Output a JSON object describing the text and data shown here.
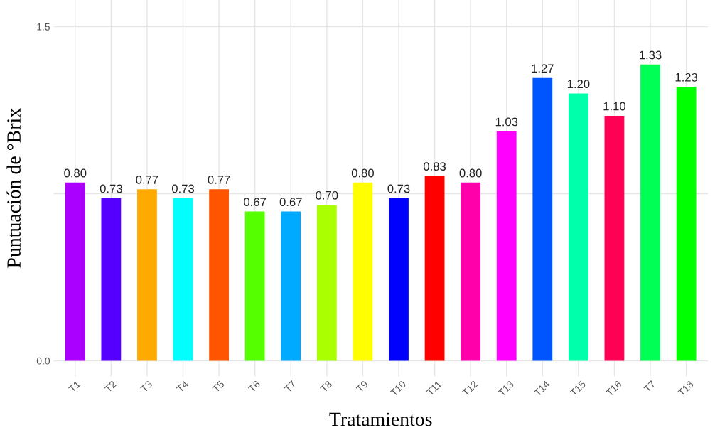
{
  "chart_data": {
    "type": "bar",
    "xlabel": "Tratamientos",
    "ylabel": "Puntuación de °Brix",
    "categories": [
      "T1",
      "T2",
      "T3",
      "T4",
      "T5",
      "T6",
      "T7",
      "T8",
      "T9",
      "T10",
      "T11",
      "T12",
      "T13",
      "T14",
      "T15",
      "T16",
      "T7",
      "T18"
    ],
    "values": [
      0.8,
      0.73,
      0.77,
      0.73,
      0.77,
      0.67,
      0.67,
      0.7,
      0.8,
      0.73,
      0.83,
      0.8,
      1.03,
      1.27,
      1.2,
      1.1,
      1.33,
      1.23
    ],
    "colors": [
      "#aa00ff",
      "#5500ff",
      "#ffaa00",
      "#00ffff",
      "#ff5500",
      "#55ff00",
      "#00aaff",
      "#aaff00",
      "#ffff00",
      "#0000ff",
      "#ff0000",
      "#ff00aa",
      "#ff00ff",
      "#0055ff",
      "#00ffaa",
      "#ff0055",
      "#00ff55",
      "#00ff00"
    ],
    "value_labels": [
      "0.80",
      "0.73",
      "0.77",
      "0.73",
      "0.77",
      "0.67",
      "0.67",
      "0.70",
      "0.80",
      "0.73",
      "0.83",
      "0.80",
      "1.03",
      "1.27",
      "1.20",
      "1.10",
      "1.33",
      "1.23"
    ],
    "ylim": [
      -0.07,
      1.62
    ],
    "yticks": [
      {
        "value": 0.0,
        "label": "0.0"
      },
      {
        "value": 0.75,
        "label": null
      },
      {
        "value": 1.5,
        "label": "1.5"
      }
    ],
    "grid": true
  }
}
